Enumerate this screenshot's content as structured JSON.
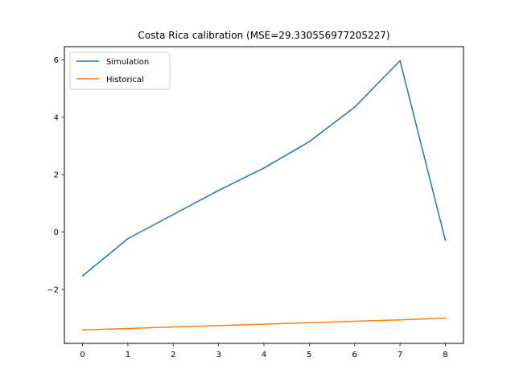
{
  "chart_data": {
    "type": "line",
    "title": "Costa Rica calibration (MSE=29.330556977205227)",
    "xlabel": "",
    "ylabel": "",
    "x": [
      0,
      1,
      2,
      3,
      4,
      5,
      6,
      7,
      8
    ],
    "xticks": [
      "0",
      "1",
      "2",
      "3",
      "4",
      "5",
      "6",
      "7",
      "8"
    ],
    "yticks": [
      {
        "value": -2,
        "label": "−2"
      },
      {
        "value": 0,
        "label": "0"
      },
      {
        "value": 2,
        "label": "2"
      },
      {
        "value": 4,
        "label": "4"
      },
      {
        "value": 6,
        "label": "6"
      }
    ],
    "xlim": [
      -0.4,
      8.4
    ],
    "ylim": [
      -3.88,
      6.46
    ],
    "grid": false,
    "legend_position": "top-left",
    "series": [
      {
        "name": "Simulation",
        "color": "#1f77b4",
        "values": [
          -1.53,
          -0.23,
          0.61,
          1.45,
          2.23,
          3.15,
          4.35,
          5.97,
          -0.29
        ]
      },
      {
        "name": "Historical",
        "color": "#ff7f0e",
        "values": [
          -3.41,
          -3.36,
          -3.31,
          -3.26,
          -3.21,
          -3.16,
          -3.11,
          -3.06,
          -3.0
        ]
      }
    ]
  }
}
